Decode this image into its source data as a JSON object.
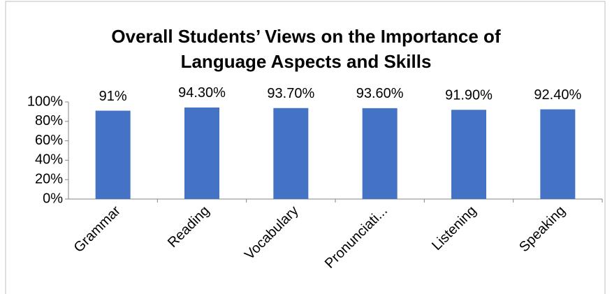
{
  "chart_data": {
    "type": "bar",
    "title": "Overall Students’ Views on the Importance of Language Aspects and Skills",
    "categories": [
      "Grammar",
      "Reading",
      "Vocabulary",
      "Pronunciati...",
      "Listening",
      "Speaking"
    ],
    "values": [
      91,
      94.3,
      93.7,
      93.6,
      91.9,
      92.4
    ],
    "value_labels": [
      "91%",
      "94.30%",
      "93.70%",
      "93.60%",
      "91.90%",
      "92.40%"
    ],
    "color": "#4472c4",
    "ylim": [
      0,
      100
    ],
    "yticks": [
      {
        "value": 0,
        "label": "0%"
      },
      {
        "value": 20,
        "label": "20%"
      },
      {
        "value": 40,
        "label": "40%"
      },
      {
        "value": 60,
        "label": "60%"
      },
      {
        "value": 80,
        "label": "80%"
      },
      {
        "value": 100,
        "label": "100%"
      }
    ],
    "grid": false
  }
}
